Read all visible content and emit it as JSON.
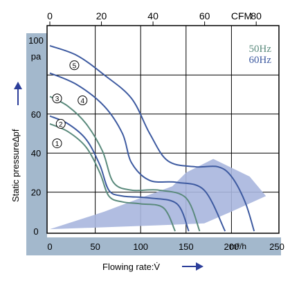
{
  "chart_data": {
    "type": "line",
    "title": "",
    "xlabel": "Flowing rate:V̇",
    "xunit": "m³/h",
    "ylabel": "Static pressure∆pf",
    "yunit": "pa",
    "top_axis_unit": "CFM",
    "xlim": [
      0,
      250
    ],
    "ylim": [
      0,
      100
    ],
    "top_axis_lim": [
      0,
      88
    ],
    "x_ticks": [
      "0",
      "50",
      "100",
      "150",
      "200",
      "250"
    ],
    "y_ticks": [
      "0",
      "20",
      "40",
      "60",
      "100"
    ],
    "top_ticks": [
      "0",
      "20",
      "40",
      "60",
      "80"
    ],
    "grid": true,
    "legend": [
      {
        "label": "50Hz",
        "color": "#5a8a7c"
      },
      {
        "label": "60Hz",
        "color": "#3d5aa0"
      }
    ],
    "series": [
      {
        "name": "1",
        "freq": "50Hz",
        "x": [
          0,
          20,
          40,
          55,
          65,
          80,
          100,
          125,
          138
        ],
        "y": [
          55,
          51,
          43,
          30,
          18,
          15,
          14,
          12,
          0
        ]
      },
      {
        "name": "2",
        "freq": "60Hz",
        "x": [
          0,
          20,
          40,
          55,
          65,
          80,
          110,
          140,
          153
        ],
        "y": [
          59,
          55,
          47,
          34,
          21,
          18,
          17,
          14,
          0
        ]
      },
      {
        "name": "3",
        "freq": "50Hz",
        "x": [
          0,
          20,
          40,
          58,
          70,
          90,
          120,
          150,
          165
        ],
        "y": [
          69,
          64,
          55,
          41,
          25,
          21,
          21,
          17,
          0
        ]
      },
      {
        "name": "4",
        "freq": "60Hz",
        "x": [
          0,
          30,
          60,
          80,
          90,
          110,
          140,
          170,
          193
        ],
        "y": [
          81,
          75,
          64,
          50,
          35,
          26,
          25,
          21,
          0
        ]
      },
      {
        "name": "5",
        "freq": "60Hz",
        "x": [
          0,
          30,
          60,
          90,
          110,
          130,
          160,
          185,
          200,
          215,
          225
        ],
        "y": [
          95,
          90,
          80,
          68,
          50,
          36,
          33,
          33,
          28,
          15,
          0
        ]
      }
    ],
    "operating_region": {
      "color": "#a9b6de",
      "x": [
        0,
        60,
        100,
        135,
        150,
        180,
        220,
        238,
        200,
        170,
        120,
        60,
        0
      ],
      "y": [
        1,
        10,
        17,
        23,
        30,
        37,
        28,
        18,
        10,
        4,
        3,
        2,
        1
      ]
    },
    "curve_label_positions": [
      {
        "label": "1",
        "x": 8,
        "y": 45
      },
      {
        "label": "2",
        "x": 12,
        "y": 55
      },
      {
        "label": "3",
        "x": 8,
        "y": 68
      },
      {
        "label": "4",
        "x": 36,
        "y": 67
      },
      {
        "label": "5",
        "x": 27,
        "y": 85
      }
    ]
  }
}
